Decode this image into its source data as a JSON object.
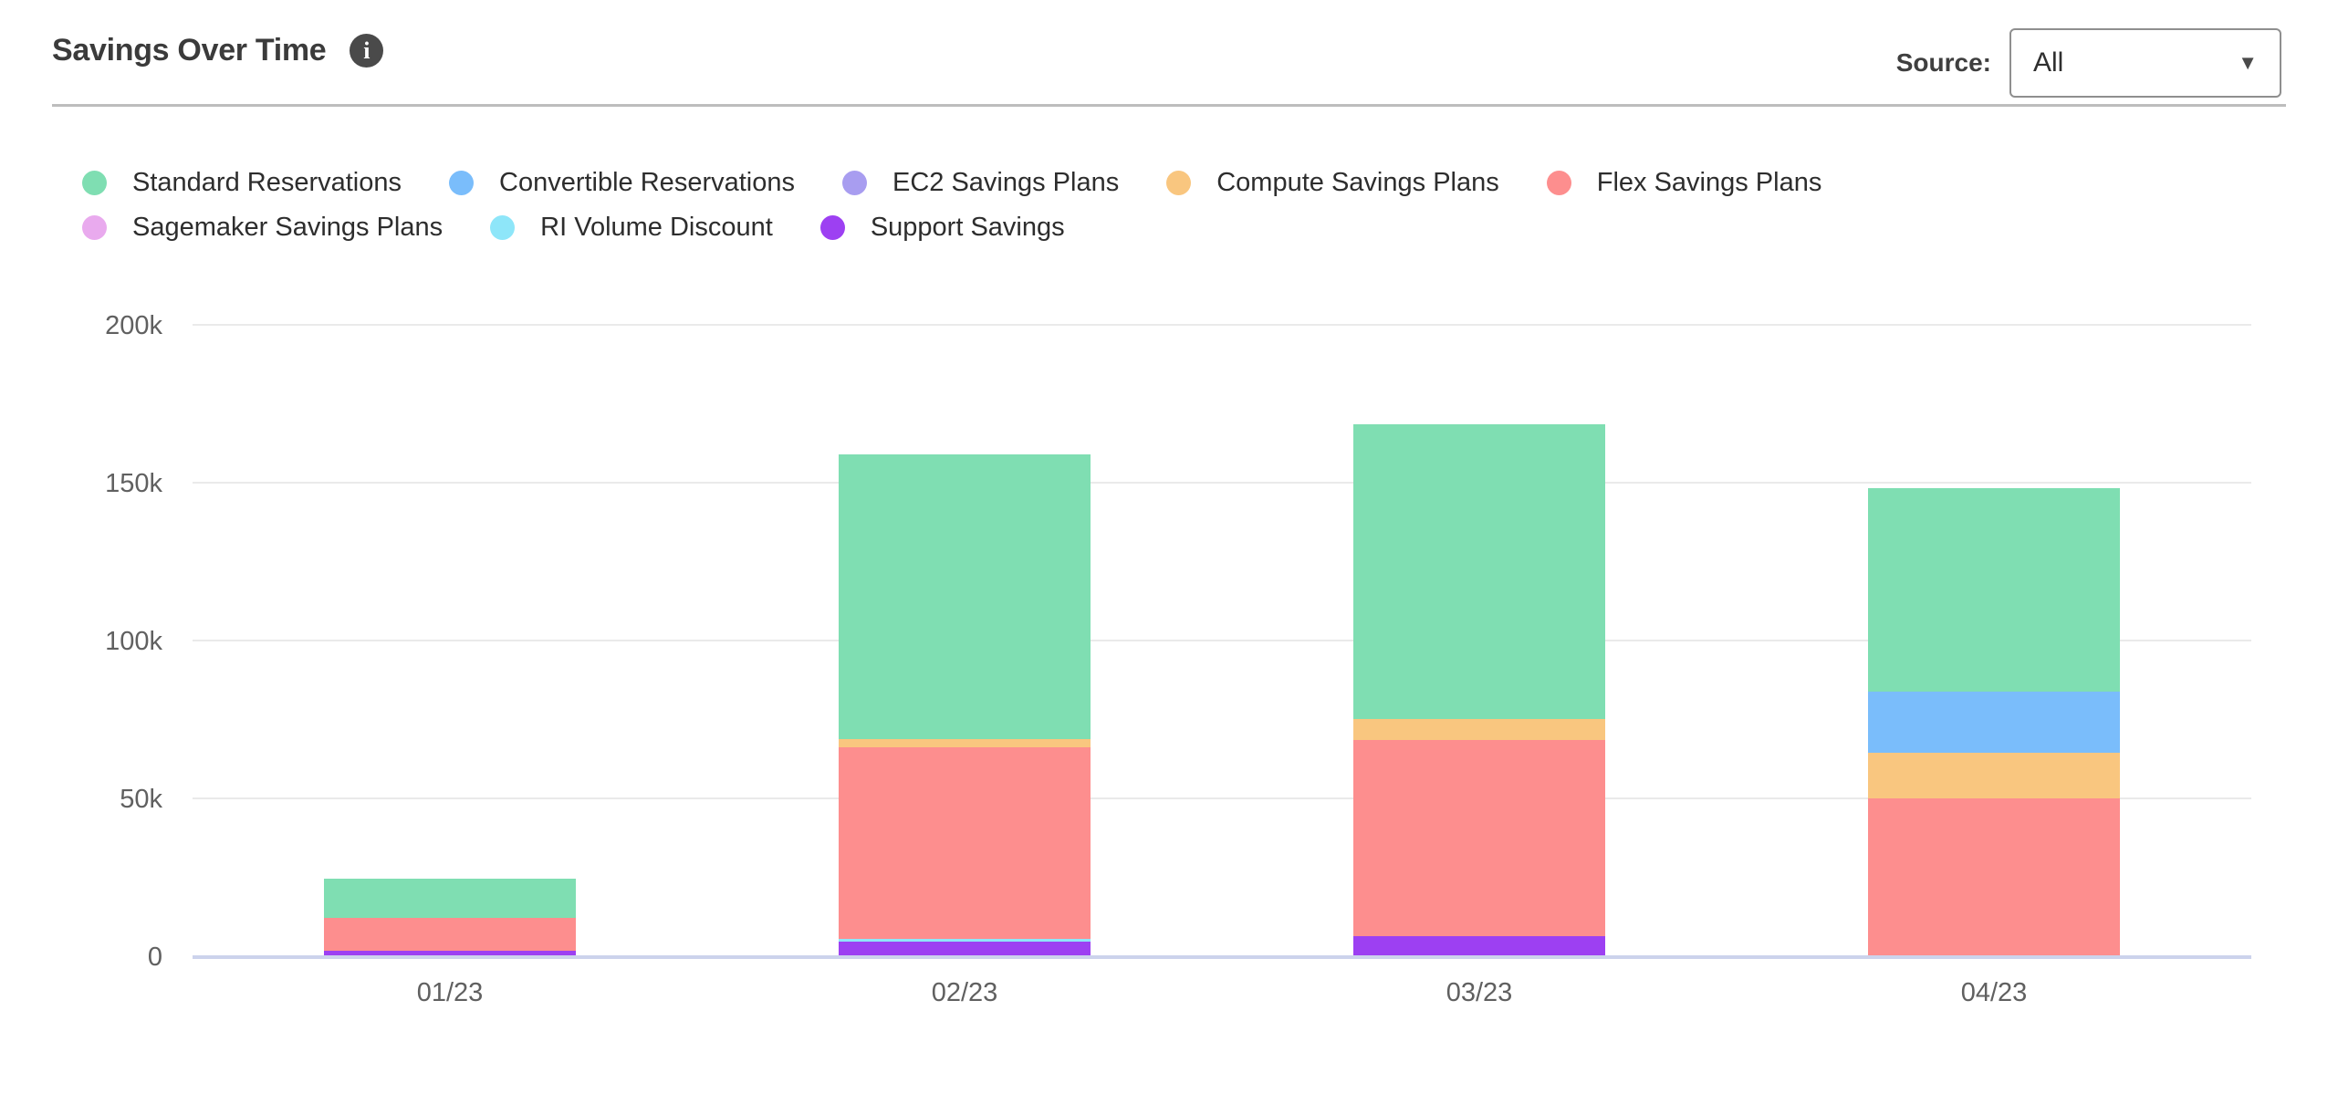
{
  "header": {
    "title": "Savings Over Time",
    "source_label": "Source:",
    "source_value": "All"
  },
  "icons": {
    "info_glyph": "i",
    "caret_glyph": "▼"
  },
  "colors": {
    "axis_line": "#ccd3ec",
    "gridline": "#eaeaea",
    "tick_text": "#606060",
    "title_text": "#3b3b3b"
  },
  "legend": [
    {
      "label": "Standard Reservations",
      "color": "#7fdeb2"
    },
    {
      "label": "Convertible Reservations",
      "color": "#7abdfb"
    },
    {
      "label": "EC2 Savings Plans",
      "color": "#a89df0"
    },
    {
      "label": "Compute Savings Plans",
      "color": "#f9c67f"
    },
    {
      "label": "Flex Savings Plans",
      "color": "#fd8e8e"
    },
    {
      "label": "Sagemaker Savings Plans",
      "color": "#e9aaee"
    },
    {
      "label": "RI Volume Discount",
      "color": "#8ee6f9"
    },
    {
      "label": "Support Savings",
      "color": "#9d40f2"
    }
  ],
  "chart_data": {
    "type": "bar",
    "stacked": true,
    "stack_order": "bottom_to_top",
    "title": "Savings Over Time",
    "xlabel": "",
    "ylabel": "",
    "grid": true,
    "legend_position": "top",
    "categories": [
      "01/23",
      "02/23",
      "03/23",
      "04/23"
    ],
    "series": [
      {
        "name": "Support Savings",
        "color": "#9d40f2",
        "values": [
          1500,
          4200,
          6000,
          0
        ]
      },
      {
        "name": "RI Volume Discount",
        "color": "#8ee6f9",
        "values": [
          0,
          1000,
          0,
          0
        ]
      },
      {
        "name": "Sagemaker Savings Plans",
        "color": "#e9aaee",
        "values": [
          0,
          0,
          0,
          0
        ]
      },
      {
        "name": "Flex Savings Plans",
        "color": "#fd8e8e",
        "values": [
          10300,
          60800,
          62200,
          49800
        ]
      },
      {
        "name": "Compute Savings Plans",
        "color": "#f9c67f",
        "values": [
          0,
          2400,
          6800,
          14400
        ]
      },
      {
        "name": "EC2 Savings Plans",
        "color": "#a89df0",
        "values": [
          0,
          0,
          0,
          0
        ]
      },
      {
        "name": "Convertible Reservations",
        "color": "#7abdfb",
        "values": [
          0,
          0,
          0,
          19300
        ]
      },
      {
        "name": "Standard Reservations",
        "color": "#7fdeb2",
        "values": [
          12500,
          90200,
          93100,
          64400
        ]
      }
    ],
    "totals": [
      24300,
      158600,
      168100,
      147900
    ],
    "ylim": [
      0,
      200000
    ],
    "yticks": [
      0,
      50000,
      100000,
      150000,
      200000
    ],
    "ytick_labels": [
      "0",
      "50k",
      "100k",
      "150k",
      "200k"
    ]
  }
}
